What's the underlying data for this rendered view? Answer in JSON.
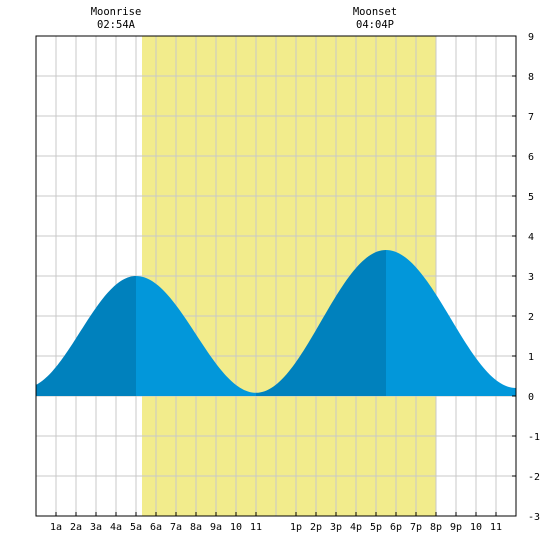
{
  "moon": {
    "rise_label": "Moonrise",
    "rise_time": "02:54A",
    "set_label": "Moonset",
    "set_time": "04:04P"
  },
  "chart_data": {
    "type": "area",
    "x_tick_labels": [
      "1a",
      "2a",
      "3a",
      "4a",
      "5a",
      "6a",
      "7a",
      "8a",
      "9a",
      "10",
      "11",
      "1p",
      "2p",
      "3p",
      "4p",
      "5p",
      "6p",
      "7p",
      "8p",
      "9p",
      "10",
      "11"
    ],
    "x_tick_hours": [
      1,
      2,
      3,
      4,
      5,
      6,
      7,
      8,
      9,
      10,
      11,
      13,
      14,
      15,
      16,
      17,
      18,
      19,
      20,
      21,
      22,
      23
    ],
    "x_range_hours": [
      0,
      24
    ],
    "y_tick_labels": [
      "9",
      "8",
      "7",
      "6",
      "5",
      "4",
      "3",
      "2",
      "1",
      "0",
      "-1",
      "-2",
      "-3"
    ],
    "y_tick_values": [
      9,
      8,
      7,
      6,
      5,
      4,
      3,
      2,
      1,
      0,
      -1,
      -2,
      -3
    ],
    "ylim": [
      -3,
      9
    ],
    "grid": true,
    "daylight_hours": [
      5.3,
      20.0
    ],
    "tide_extremes": [
      {
        "hour": -0.6,
        "height": 0.2
      },
      {
        "hour": 5.0,
        "height": 3.0
      },
      {
        "hour": 11.0,
        "height": 0.08
      },
      {
        "hour": 17.5,
        "height": 3.65
      },
      {
        "hour": 24.0,
        "height": 0.2
      }
    ],
    "colors": {
      "daylight": "#f2ec8c",
      "rising_fill": "#0081bd",
      "falling_fill": "#0297da",
      "grid": "#c8c8c8",
      "frame": "#000000",
      "background": "#ffffff"
    }
  }
}
